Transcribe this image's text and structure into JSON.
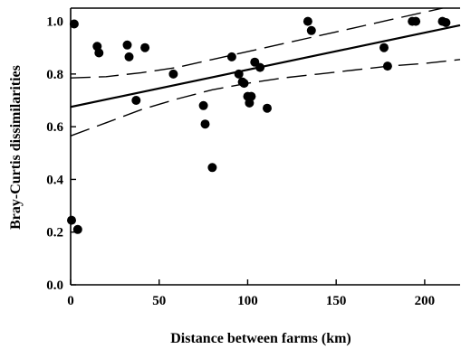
{
  "chart_data": {
    "type": "scatter",
    "xlabel": "Distance between farms (km)",
    "ylabel": "Bray-Curtis dissimilarities",
    "xlim": [
      0,
      220
    ],
    "ylim": [
      0,
      1.05
    ],
    "x_ticks": [
      0,
      50,
      100,
      150,
      200
    ],
    "x_tick_labels": [
      "0",
      "50",
      "100",
      "150",
      "200"
    ],
    "y_ticks": [
      0,
      0.2,
      0.4,
      0.6,
      0.8,
      1.0
    ],
    "y_tick_labels": [
      "0.0",
      "0.2",
      "0.4",
      "0.6",
      "0.8",
      "1.0"
    ],
    "grid": false,
    "points": [
      {
        "x": 0.5,
        "y": 0.245
      },
      {
        "x": 2,
        "y": 0.99
      },
      {
        "x": 4,
        "y": 0.21
      },
      {
        "x": 15,
        "y": 0.905
      },
      {
        "x": 16,
        "y": 0.88
      },
      {
        "x": 32,
        "y": 0.91
      },
      {
        "x": 33,
        "y": 0.865
      },
      {
        "x": 37,
        "y": 0.7
      },
      {
        "x": 42,
        "y": 0.9
      },
      {
        "x": 58,
        "y": 0.8
      },
      {
        "x": 75,
        "y": 0.68
      },
      {
        "x": 76,
        "y": 0.61
      },
      {
        "x": 80,
        "y": 0.445
      },
      {
        "x": 91,
        "y": 0.865
      },
      {
        "x": 95,
        "y": 0.8
      },
      {
        "x": 97,
        "y": 0.77
      },
      {
        "x": 98,
        "y": 0.765
      },
      {
        "x": 100,
        "y": 0.715
      },
      {
        "x": 101,
        "y": 0.69
      },
      {
        "x": 102,
        "y": 0.715
      },
      {
        "x": 104,
        "y": 0.845
      },
      {
        "x": 107,
        "y": 0.825
      },
      {
        "x": 111,
        "y": 0.67
      },
      {
        "x": 134,
        "y": 1.0
      },
      {
        "x": 136,
        "y": 0.965
      },
      {
        "x": 177,
        "y": 0.9
      },
      {
        "x": 179,
        "y": 0.83
      },
      {
        "x": 193,
        "y": 1.0
      },
      {
        "x": 195,
        "y": 1.0
      },
      {
        "x": 210,
        "y": 1.0
      },
      {
        "x": 212,
        "y": 0.995
      }
    ],
    "fit_line": {
      "x": [
        0,
        220
      ],
      "y": [
        0.675,
        0.985
      ]
    },
    "confidence_upper": {
      "x": [
        0,
        20,
        40,
        60,
        80,
        100,
        120,
        140,
        160,
        180,
        200,
        220
      ],
      "y": [
        0.785,
        0.79,
        0.805,
        0.825,
        0.855,
        0.885,
        0.915,
        0.945,
        0.975,
        1.005,
        1.035,
        1.065
      ]
    },
    "confidence_lower": {
      "x": [
        0,
        20,
        40,
        60,
        80,
        100,
        120,
        140,
        160,
        180,
        200,
        220
      ],
      "y": [
        0.565,
        0.615,
        0.665,
        0.705,
        0.74,
        0.765,
        0.785,
        0.8,
        0.815,
        0.83,
        0.84,
        0.855
      ]
    }
  }
}
